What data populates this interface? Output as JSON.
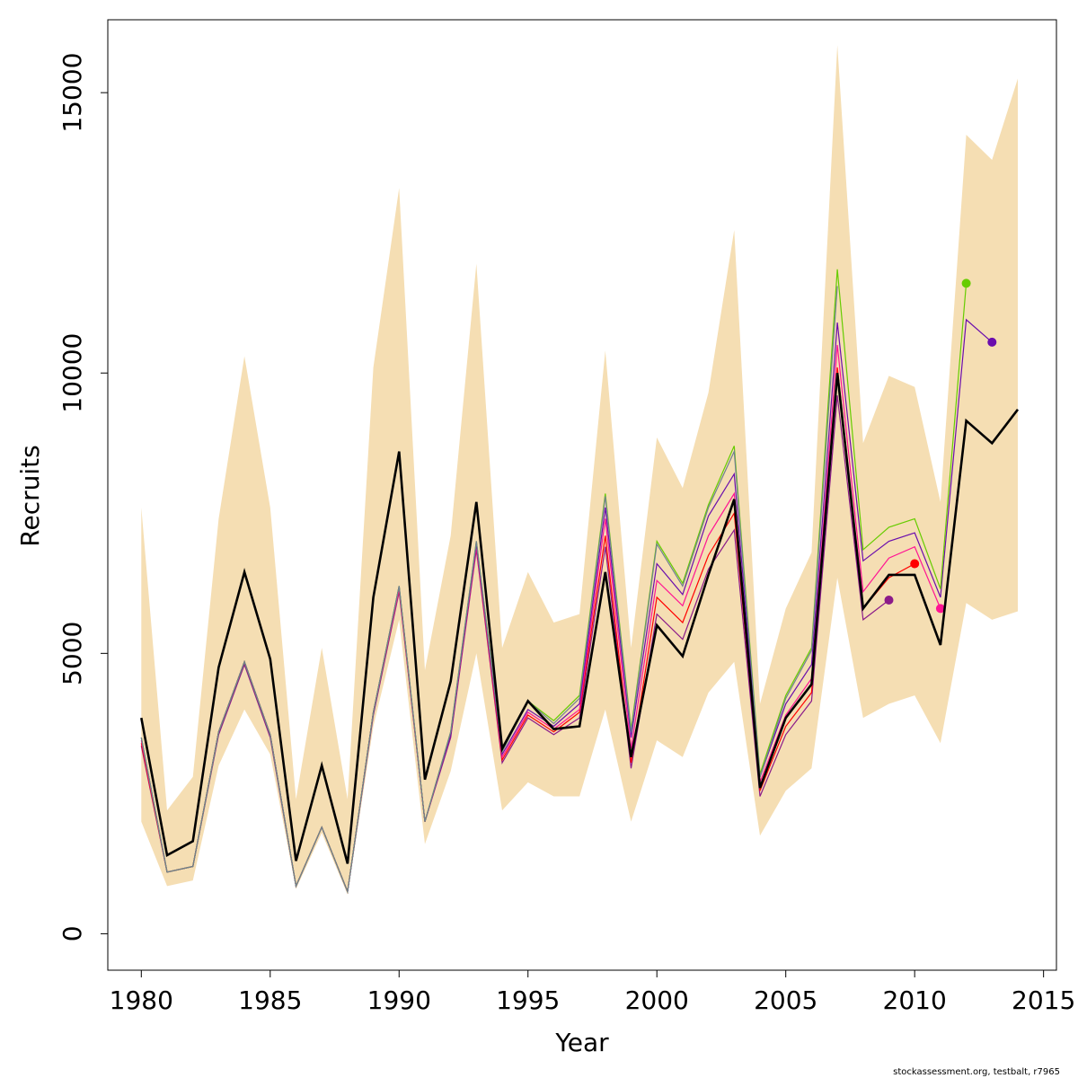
{
  "chart_data": {
    "type": "line",
    "xlabel": "Year",
    "ylabel": "Recruits",
    "xlim": [
      1978.7,
      2015.5
    ],
    "ylim": [
      -650,
      16300
    ],
    "x_ticks": [
      1980,
      1985,
      1990,
      1995,
      2000,
      2005,
      2010,
      2015
    ],
    "y_ticks": [
      0,
      5000,
      10000,
      15000
    ],
    "credit": "stockassessment.org, testbalt, r7965",
    "band_color": "#f5deb3",
    "band": {
      "x": [
        1980,
        1981,
        1982,
        1983,
        1984,
        1985,
        1986,
        1987,
        1988,
        1989,
        1990,
        1991,
        1992,
        1993,
        1994,
        1995,
        1996,
        1997,
        1998,
        1999,
        2000,
        2001,
        2002,
        2003,
        2004,
        2005,
        2006,
        2007,
        2008,
        2009,
        2010,
        2011,
        2012,
        2013,
        2014
      ],
      "lower": [
        2000,
        850,
        950,
        3000,
        4000,
        3200,
        800,
        1800,
        700,
        3700,
        5600,
        1600,
        2900,
        5000,
        2200,
        2700,
        2450,
        2450,
        4000,
        2000,
        3450,
        3150,
        4300,
        4850,
        1750,
        2550,
        2950,
        6350,
        3850,
        4100,
        4250,
        3400,
        5900,
        5600,
        5750
      ],
      "upper": [
        7600,
        2200,
        2800,
        7400,
        10300,
        7600,
        2400,
        5100,
        2400,
        10100,
        13300,
        4700,
        7100,
        11950,
        5100,
        6450,
        5550,
        5700,
        10400,
        5100,
        8850,
        7950,
        9650,
        12550,
        4100,
        5800,
        6800,
        15850,
        8750,
        9950,
        9750,
        7700,
        14250,
        13800,
        15250
      ]
    },
    "main_series": {
      "color": "#000000",
      "x": [
        1980,
        1981,
        1982,
        1983,
        1984,
        1985,
        1986,
        1987,
        1988,
        1989,
        1990,
        1991,
        1992,
        1993,
        1994,
        1995,
        1996,
        1997,
        1998,
        1999,
        2000,
        2001,
        2002,
        2003,
        2004,
        2005,
        2006,
        2007,
        2008,
        2009,
        2010,
        2011,
        2012,
        2013,
        2014
      ],
      "y": [
        3850,
        1400,
        1650,
        4750,
        6450,
        4900,
        1300,
        3000,
        1250,
        6000,
        8600,
        2750,
        4500,
        7700,
        3300,
        4150,
        3650,
        3700,
        6450,
        3150,
        5500,
        4950,
        6400,
        7750,
        2600,
        3850,
        4450,
        10000,
        5800,
        6400,
        6400,
        5150,
        9150,
        8750,
        9350
      ]
    },
    "retro_series": [
      {
        "color": "#8b1a89",
        "x": [
          1980,
          1981,
          1982,
          1983,
          1984,
          1985,
          1986,
          1987,
          1988,
          1989,
          1990,
          1991,
          1992,
          1993,
          1994,
          1995,
          1996,
          1997,
          1998,
          1999,
          2000,
          2001,
          2002,
          2003,
          2004,
          2005,
          2006,
          2007,
          2008,
          2009
        ],
        "y": [
          3350,
          1100,
          1200,
          3550,
          4800,
          3500,
          850,
          1900,
          750,
          3900,
          6100,
          2000,
          3500,
          6850,
          3050,
          3850,
          3550,
          3850,
          6900,
          2950,
          5700,
          5250,
          6500,
          7200,
          2450,
          3550,
          4150,
          9600,
          5600,
          5950
        ],
        "end": {
          "x": 2009,
          "y": 5950
        }
      },
      {
        "color": "#ff0000",
        "x": [
          1980,
          1981,
          1982,
          1983,
          1984,
          1985,
          1986,
          1987,
          1988,
          1989,
          1990,
          1991,
          1992,
          1993,
          1994,
          1995,
          1996,
          1997,
          1998,
          1999,
          2000,
          2001,
          2002,
          2003,
          2004,
          2005,
          2006,
          2007,
          2008,
          2009,
          2010
        ],
        "y": [
          3400,
          1100,
          1200,
          3600,
          4850,
          3550,
          850,
          1900,
          750,
          3950,
          6150,
          2000,
          3550,
          6900,
          3100,
          3900,
          3600,
          3950,
          7100,
          3050,
          6000,
          5550,
          6750,
          7500,
          2550,
          3700,
          4300,
          10100,
          5800,
          6350,
          6600
        ],
        "end": {
          "x": 2010,
          "y": 6600
        }
      },
      {
        "color": "#ff1493",
        "x": [
          1980,
          1981,
          1982,
          1983,
          1984,
          1985,
          1986,
          1987,
          1988,
          1989,
          1990,
          1991,
          1992,
          1993,
          1994,
          1995,
          1996,
          1997,
          1998,
          1999,
          2000,
          2001,
          2002,
          2003,
          2004,
          2005,
          2006,
          2007,
          2008,
          2009,
          2010,
          2011
        ],
        "y": [
          3450,
          1100,
          1200,
          3600,
          4850,
          3550,
          850,
          1900,
          750,
          3950,
          6150,
          2000,
          3550,
          6900,
          3150,
          3950,
          3650,
          4000,
          7400,
          3300,
          6300,
          5850,
          7100,
          7850,
          2700,
          3900,
          4550,
          10500,
          6100,
          6700,
          6900,
          5800
        ],
        "end": {
          "x": 2011,
          "y": 5800
        }
      },
      {
        "color": "#6a0dad",
        "x": [
          1980,
          1981,
          1982,
          1983,
          1984,
          1985,
          1986,
          1987,
          1988,
          1989,
          1990,
          1991,
          1992,
          1993,
          1994,
          1995,
          1996,
          1997,
          1998,
          1999,
          2000,
          2001,
          2002,
          2003,
          2004,
          2005,
          2006,
          2007,
          2008,
          2009,
          2010,
          2011,
          2012,
          2013
        ],
        "y": [
          3500,
          1100,
          1200,
          3600,
          4850,
          3550,
          850,
          1900,
          750,
          3950,
          6200,
          2000,
          3550,
          6950,
          3200,
          4000,
          3700,
          4100,
          7600,
          3500,
          6600,
          6050,
          7450,
          8200,
          2800,
          4100,
          4800,
          10900,
          6650,
          7000,
          7150,
          6000,
          10950,
          10550
        ],
        "end": {
          "x": 2013,
          "y": 10550
        }
      },
      {
        "color": "#66cc00",
        "x": [
          1980,
          1981,
          1982,
          1983,
          1984,
          1985,
          1986,
          1987,
          1988,
          1989,
          1990,
          1991,
          1992,
          1993,
          1994,
          1995,
          1996,
          1997,
          1998,
          1999,
          2000,
          2001,
          2002,
          2003,
          2004,
          2005,
          2006,
          2007,
          2008,
          2009,
          2010,
          2011,
          2012
        ],
        "y": [
          3500,
          1100,
          1200,
          3600,
          4850,
          3550,
          850,
          1900,
          750,
          3950,
          6200,
          2000,
          3600,
          7000,
          3250,
          4150,
          3800,
          4250,
          7850,
          3650,
          7000,
          6250,
          7650,
          8700,
          2850,
          4250,
          5100,
          11850,
          6850,
          7250,
          7400,
          6150,
          11600
        ],
        "end": {
          "x": 2012,
          "y": 11600
        }
      },
      {
        "color": "#708090",
        "x": [
          1980,
          1981,
          1982,
          1983,
          1984,
          1985,
          1986,
          1987,
          1988,
          1989,
          1990,
          1991,
          1992,
          1993,
          1994,
          1995,
          1996,
          1997,
          1998,
          1999,
          2000,
          2001,
          2002,
          2003,
          2004,
          2005,
          2006,
          2007
        ],
        "y": [
          3500,
          1100,
          1200,
          3600,
          4850,
          3550,
          850,
          1900,
          750,
          3950,
          6200,
          2000,
          3600,
          7000,
          3250,
          4150,
          3750,
          4200,
          7800,
          3600,
          6950,
          6200,
          7600,
          8600,
          2800,
          4200,
          5050,
          11550
        ]
      }
    ]
  }
}
